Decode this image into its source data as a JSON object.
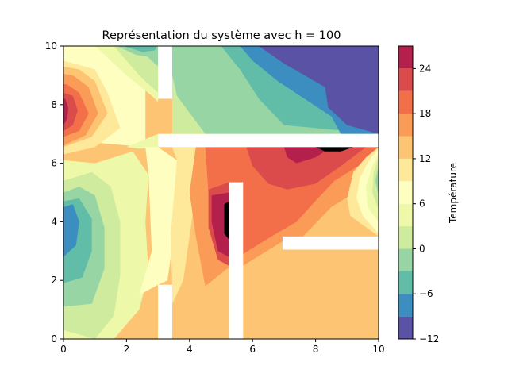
{
  "chart_data": {
    "type": "heatmap",
    "subtype": "filled-contour",
    "title": "Représentation du système avec h = 100",
    "xlim": [
      0,
      10
    ],
    "ylim": [
      0,
      10
    ],
    "xticks": [
      "0",
      "2",
      "4",
      "6",
      "8",
      "10"
    ],
    "yticks": [
      "0",
      "2",
      "4",
      "6",
      "8",
      "10"
    ],
    "colorbar": {
      "label": "Température",
      "levels": [
        -12,
        -9,
        -6,
        -3,
        0,
        3,
        6,
        9,
        12,
        15,
        18,
        21,
        24,
        27
      ],
      "tick_labels": [
        "−12",
        "−6",
        "0",
        "6",
        "12",
        "18",
        "24"
      ],
      "tick_values": [
        -12,
        -6,
        0,
        6,
        12,
        18,
        24
      ],
      "colors": [
        "#5a52a5",
        "#3c8ec0",
        "#62bda8",
        "#98d5a5",
        "#cfeb9e",
        "#eef8a9",
        "#fefec0",
        "#fee89a",
        "#fdc474",
        "#fa9c58",
        "#f36f4a",
        "#dc4b4c",
        "#b4204c"
      ]
    },
    "walls": [
      {
        "x": [
          3.0,
          3.45
        ],
        "y": [
          8.2,
          10.0
        ]
      },
      {
        "x": [
          3.0,
          10.0
        ],
        "y": [
          6.55,
          7.0
        ]
      },
      {
        "x": [
          5.25,
          5.7
        ],
        "y": [
          0.0,
          5.35
        ]
      },
      {
        "x": [
          6.95,
          10.0
        ],
        "y": [
          3.05,
          3.5
        ]
      },
      {
        "x": [
          3.0,
          3.45
        ],
        "y": [
          0.0,
          1.85
        ]
      }
    ],
    "grid": false
  }
}
